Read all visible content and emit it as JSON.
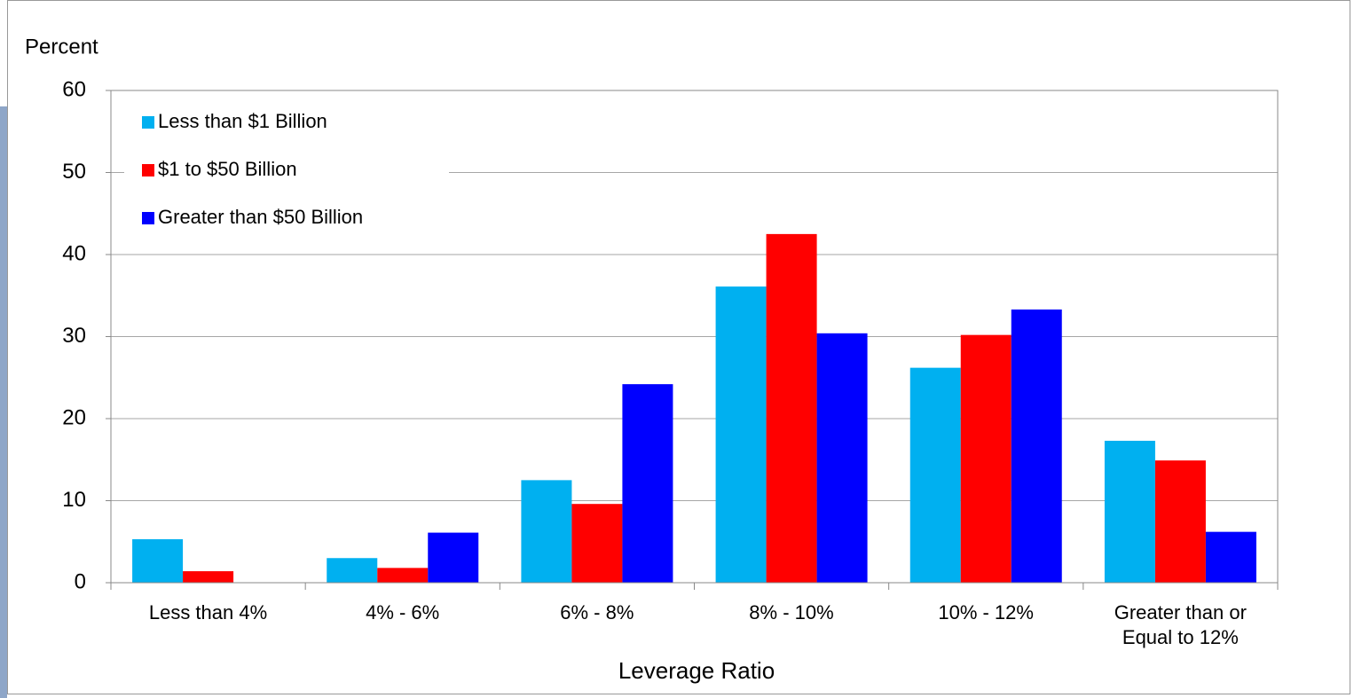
{
  "chart_data": {
    "type": "bar",
    "y_label": "Percent",
    "x_label": "Leverage Ratio",
    "categories": [
      "Less than 4%",
      "4% - 6%",
      "6% - 8%",
      "8% - 10%",
      "10% - 12%",
      "Greater than or\nEqual to 12%"
    ],
    "series": [
      {
        "name": "Less than $1 Billion",
        "color": "#00b0f0",
        "values": [
          5.3,
          3.0,
          12.5,
          36.1,
          26.2,
          17.3
        ]
      },
      {
        "name": "$1 to $50 Billion",
        "color": "#ff0000",
        "values": [
          1.4,
          1.8,
          9.6,
          42.5,
          30.2,
          14.9
        ]
      },
      {
        "name": "Greater than $50 Billion",
        "color": "#0000ff",
        "values": [
          0,
          6.1,
          24.2,
          30.4,
          33.3,
          6.2
        ]
      }
    ],
    "ylim": [
      0,
      60
    ],
    "yticks": [
      0,
      10,
      20,
      30,
      40,
      50,
      60
    ],
    "grid": true,
    "legend": "top-left"
  }
}
